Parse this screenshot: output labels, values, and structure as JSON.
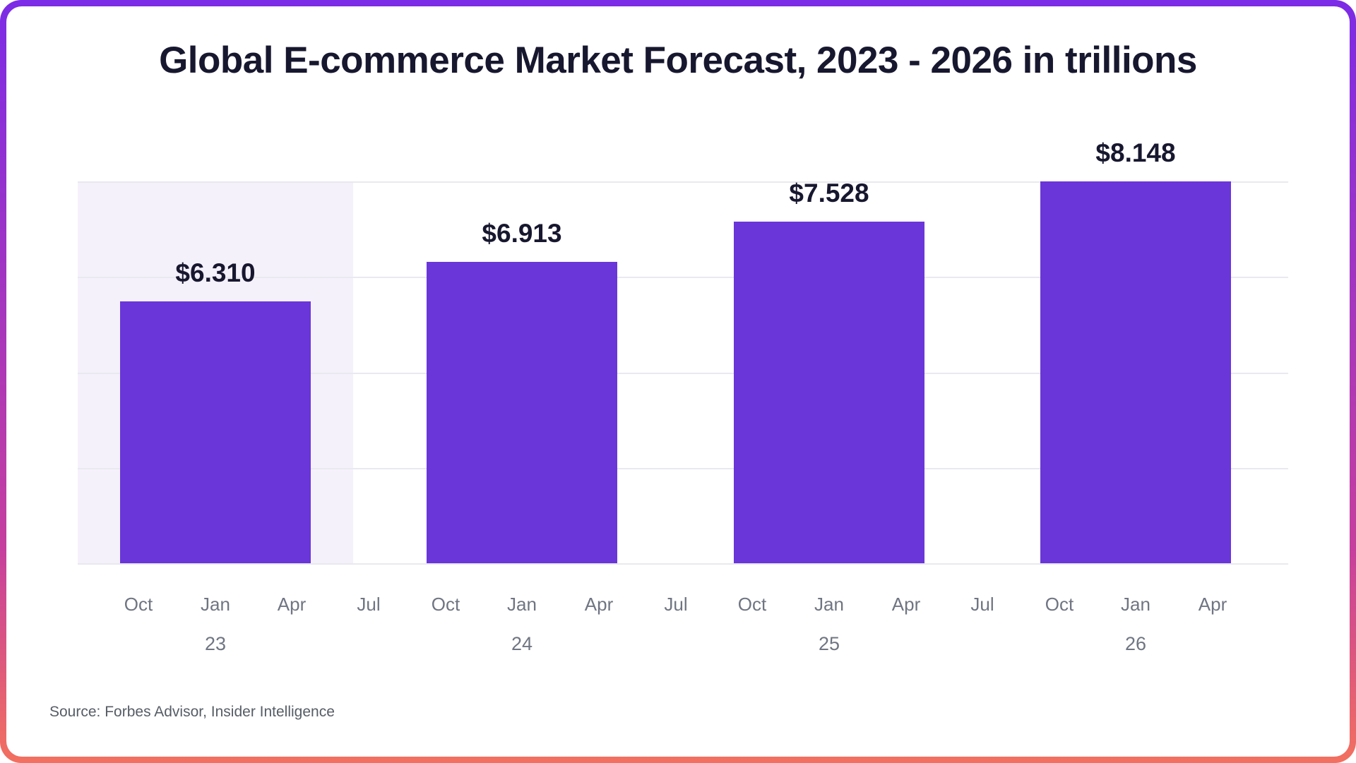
{
  "title": "Global E-commerce Market Forecast, 2023 - 2026 in trillions",
  "source_note": "Source: Forbes Advisor, Insider Intelligence",
  "chart_data": {
    "type": "bar",
    "title": "Global E-commerce Market Forecast, 2023 - 2026 in trillions",
    "unit": "trillions USD",
    "categories": [
      "23",
      "24",
      "25",
      "26"
    ],
    "values": [
      6.31,
      6.913,
      7.528,
      8.148
    ],
    "value_labels": [
      "$6.310",
      "$6.913",
      "$7.528",
      "$8.148"
    ],
    "x_tick_labels": [
      "Oct",
      "Jan",
      "Apr",
      "Jul",
      "Oct",
      "Jan",
      "Apr",
      "Jul",
      "Oct",
      "Jan",
      "Apr",
      "Jul",
      "Oct",
      "Jan",
      "Apr"
    ],
    "year_labels": [
      "23",
      "24",
      "25",
      "26"
    ],
    "xlabel": "",
    "ylabel": "",
    "ylim": [
      2.3,
      8.148
    ],
    "grid": true,
    "legend": false,
    "highlighted_group_index": 0,
    "source": "Source: Forbes Advisor, Insider Intelligence",
    "colors": {
      "bar": "#6A36D9",
      "highlight_band": "#F5F1FB",
      "grid": "#E9E9EF",
      "title": "#17172F",
      "tick": "#6F7582",
      "border_top": "#7C2BE6",
      "border_mid": "#C63F9E",
      "border_bottom": "#F2705F"
    }
  }
}
